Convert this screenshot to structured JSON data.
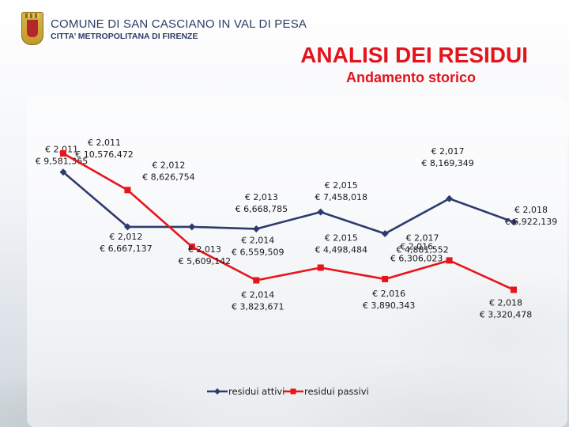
{
  "header": {
    "org_name": "COMUNE DI SAN CASCIANO IN VAL DI PESA",
    "org_sub": "CITTA’ METROPOLITANA DI FIRENZE"
  },
  "slide": {
    "title": "ANALISI DEI RESIDUI",
    "subtitle": "Andamento storico"
  },
  "colors": {
    "attivi": "#2e3b6e",
    "passivi": "#e8141c",
    "title": "#e3141c",
    "header_text": "#2c3c63"
  },
  "chart_data": {
    "type": "line",
    "title": "Andamento storico",
    "categories": [
      "2,011",
      "2,012",
      "2,013",
      "2,014",
      "2,015",
      "2,016",
      "2,017",
      "2,018"
    ],
    "ylim": [
      2500000,
      11500000
    ],
    "grid": false,
    "legend_position": "bottom",
    "series": [
      {
        "name": "residui attivi",
        "color": "#2e3b6e",
        "marker": "diamond",
        "values": [
          9581365,
          6667137,
          6668785,
          6559509,
          7458018,
          6306023,
          8169349,
          6922139
        ],
        "labels": [
          [
            "€ 2,011",
            "€ 9,581,365"
          ],
          [
            "€ 2,012",
            "€ 6,667,137"
          ],
          [
            "€ 2,013",
            "€ 6,668,785"
          ],
          [
            "€ 2,014",
            "€ 6,559,509"
          ],
          [
            "€ 2,015",
            "€ 7,458,018"
          ],
          [
            "€ 2,016",
            "€ 6,306,023"
          ],
          [
            "€ 2,017",
            "€ 8,169,349"
          ],
          [
            "€ 2,018",
            "€ 6,922,139"
          ]
        ]
      },
      {
        "name": "residui passivi",
        "color": "#e8141c",
        "marker": "square",
        "values": [
          10576472,
          8626754,
          5609142,
          3823671,
          4498484,
          3890343,
          4881552,
          3320478
        ],
        "labels": [
          [
            "€ 2,011",
            "€ 10,576,472"
          ],
          [
            "€ 2,012",
            "€ 8,626,754"
          ],
          [
            "€ 2,013",
            "€ 5,609,142"
          ],
          [
            "€ 2,014",
            "€ 3,823,671"
          ],
          [
            "€ 2,015",
            "€ 4,498,484"
          ],
          [
            "€ 2,016",
            "€ 3,890,343"
          ],
          [
            "€ 2,017",
            "€ 4,881,552"
          ],
          [
            "€ 2,018",
            "€ 3,320,478"
          ]
        ]
      }
    ]
  }
}
